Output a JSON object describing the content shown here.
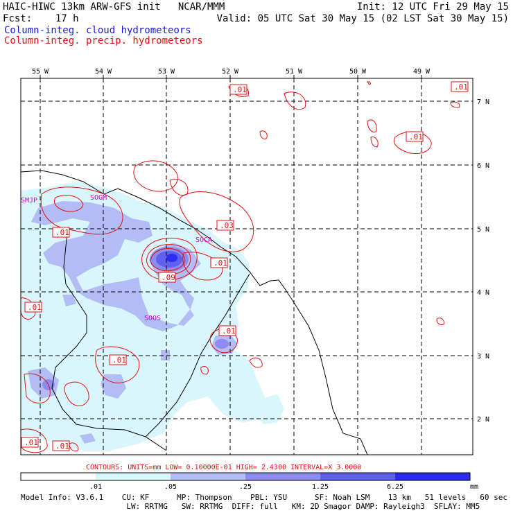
{
  "header": {
    "line1_left": "HAIC-HIWC 13km ARW-GFS init   NCAR/MMM",
    "line1_right": "Init: 12 UTC Fri 29 May 15",
    "line2_left": "Fcst:    17 h",
    "line2_right": "Valid: 05 UTC Sat 30 May 15 (02 LST Sat 30 May 15)",
    "line3": "Column-integ. cloud hydrometeors",
    "line4": "Column-integ. precip. hydrometeors"
  },
  "map": {
    "lon_labels": [
      "55 W",
      "54 W",
      "53 W",
      "52 W",
      "51 W",
      "50 W",
      "49 W"
    ],
    "lat_labels": [
      "7 N",
      "6 N",
      "5 N",
      "4 N",
      "3 N",
      "2 N"
    ],
    "stations": [
      "SMJP",
      "SOGM",
      "SOCA",
      "SOOS"
    ],
    "contour_labels": [
      ".01",
      ".01",
      ".01",
      ".03",
      ".01",
      ".09",
      ".01",
      ".01",
      ".01",
      ".01",
      ".01",
      ".01"
    ]
  },
  "contour_info": "CONTOURS:  UNITS=mm  LOW= 0.10000E-01  HIGH=  2.4300      INTERVAL=X  3.0000",
  "colorbar": {
    "ticks": [
      ".01",
      ".05",
      ".25",
      "1.25",
      "6.25"
    ],
    "unit": "mm",
    "colors": [
      "#ffffff",
      "#d8f6fc",
      "#b4bcf6",
      "#8c8cf0",
      "#6060ee",
      "#2c2cf0"
    ]
  },
  "footer": {
    "line1": "Model Info: V3.6.1    CU: KF      MP: Thompson    PBL: YSU      SF: Noah LSM    13 km   51 levels   60 sec",
    "line2": "                       LW: RRTMG   SW: RRTMG  DIFF: full   KM: 2D Smagor DAMP: Rayleigh3  SFLAY: MM5"
  }
}
